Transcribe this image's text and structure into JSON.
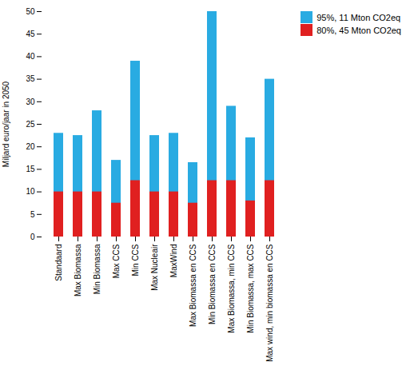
{
  "chart_data": {
    "type": "bar",
    "categories": [
      "Standaard",
      "Max Biomassa",
      "Min Biomassa",
      "Max CCS",
      "Min CCS",
      "Max Nucleair",
      "MaxWind",
      "Max Biomassa en CCS",
      "Min Biomassa en CCS",
      "Max Biomassa, min CCS",
      "Min Biomassa, max CCS",
      "Max wind, min biomassa en CCS"
    ],
    "series": [
      {
        "name": "95%, 11 Mton CO2eq",
        "color": "#29ABE2",
        "values": [
          23,
          22.5,
          28,
          17,
          39,
          22.5,
          23,
          16.5,
          50,
          29,
          22,
          35
        ]
      },
      {
        "name": "80%, 45 Mton CO2eq",
        "color": "#E02020",
        "values": [
          10,
          10,
          10,
          7.5,
          12.5,
          10,
          10,
          7.5,
          12.5,
          12.5,
          8,
          12.5
        ]
      }
    ],
    "ylabel": "Miljard euro/jaar in 2050",
    "ylim": [
      0,
      50
    ],
    "yticks": [
      0,
      5,
      10,
      15,
      20,
      25,
      30,
      35,
      40,
      45,
      50
    ],
    "stacked": false,
    "grid": false,
    "legend": "upper right"
  }
}
